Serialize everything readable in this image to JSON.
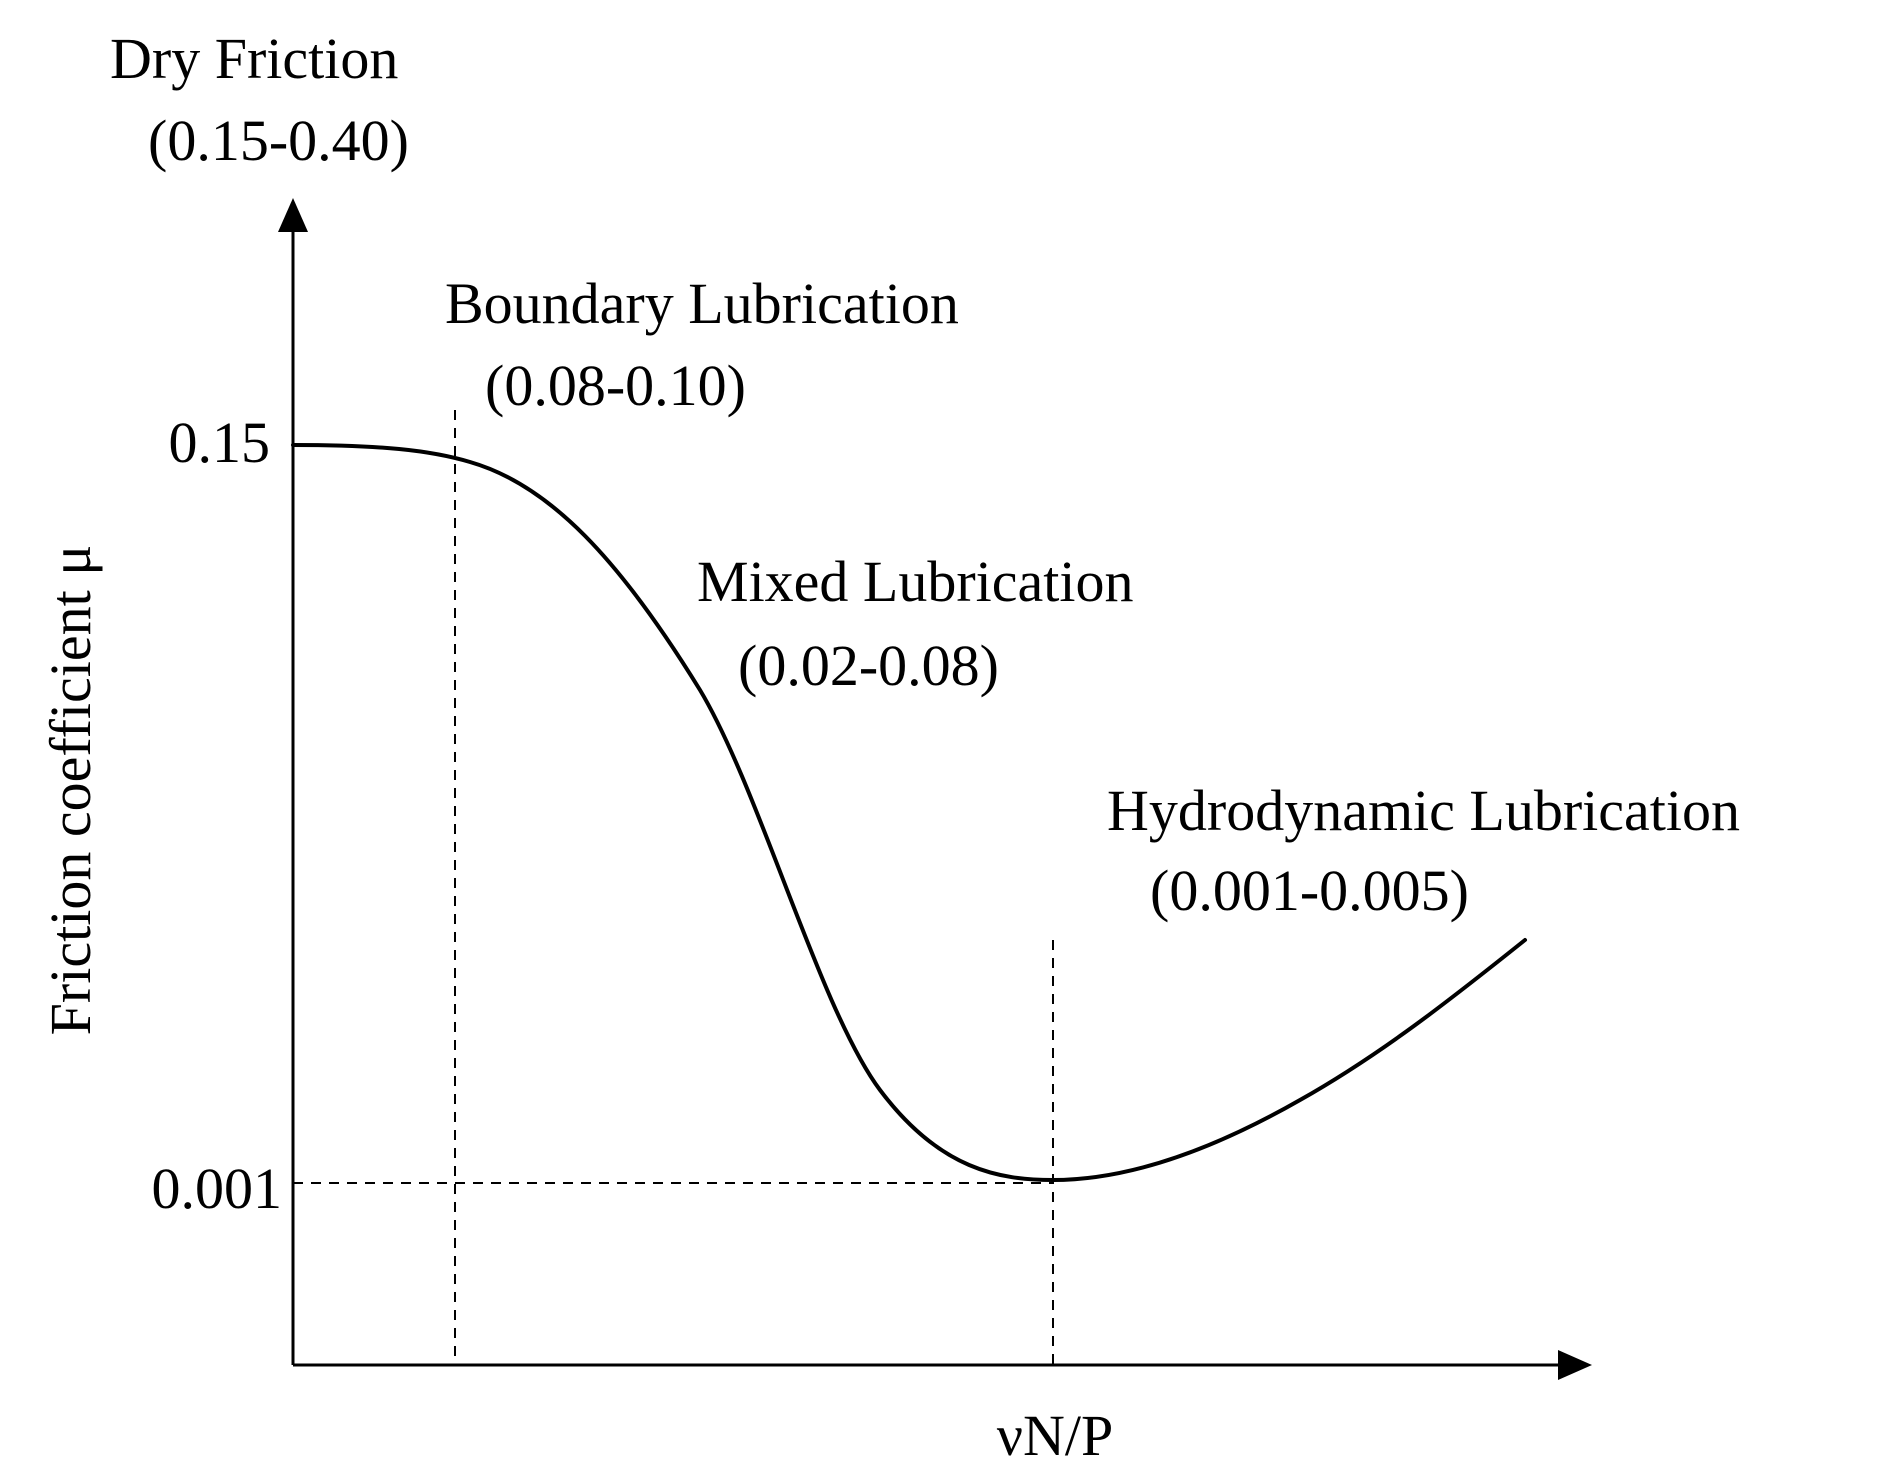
{
  "diagram": {
    "y_axis_label": "Friction coefficient μ",
    "x_axis_label": "νN/P",
    "y_ticks": [
      "0.15",
      "0.001"
    ],
    "regimes": [
      {
        "name": "Dry Friction",
        "range": "(0.15-0.40)"
      },
      {
        "name": "Boundary Lubrication",
        "range": "(0.08-0.10)"
      },
      {
        "name": "Mixed Lubrication",
        "range": "(0.02-0.08)"
      },
      {
        "name": "Hydrodynamic Lubrication",
        "range": "(0.001-0.005)"
      }
    ],
    "colors": {
      "line": "#000000",
      "background": "#ffffff"
    }
  }
}
